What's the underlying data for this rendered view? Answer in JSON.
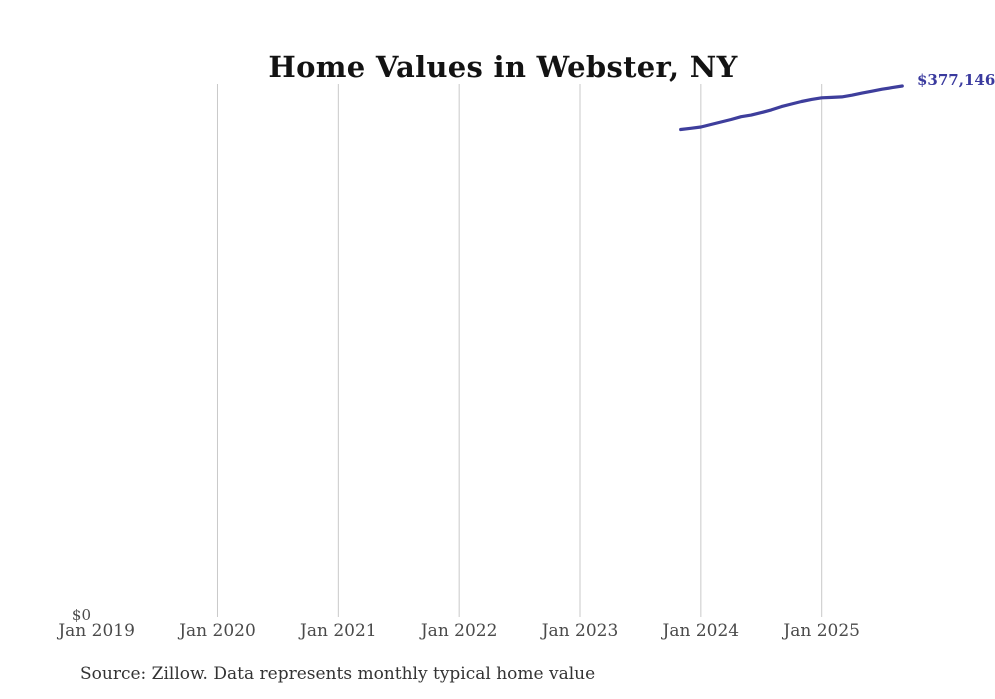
{
  "chart_data": {
    "type": "line",
    "title": "Home Values in Webster, NY",
    "x_tick_labels": [
      "Jan 2019",
      "Jan 2020",
      "Jan 2021",
      "Jan 2022",
      "Jan 2023",
      "Jan 2024",
      "Jan 2025"
    ],
    "y_zero_label": "$0",
    "end_value_label": "$377,146",
    "source_note": "Source: Zillow. Data represents monthly typical home value",
    "line_color": "#3e3e9c",
    "grid_color": "#c9c9c9",
    "label_color": "#3a3a9e",
    "grid": "vertical",
    "legend": "none",
    "ylim": [
      0,
      378000
    ],
    "x": [
      "2023-11",
      "2023-12",
      "2024-01",
      "2024-02",
      "2024-03",
      "2024-04",
      "2024-05",
      "2024-06",
      "2024-07",
      "2024-08",
      "2024-09",
      "2024-10",
      "2024-11",
      "2024-12",
      "2025-01",
      "2025-02",
      "2025-03",
      "2025-04",
      "2025-05",
      "2025-06",
      "2025-07",
      "2025-08",
      "2025-09"
    ],
    "values": [
      345800,
      346700,
      347600,
      349400,
      351200,
      353000,
      355000,
      356200,
      358000,
      359900,
      362300,
      364200,
      366000,
      367500,
      368600,
      368900,
      369300,
      370500,
      372000,
      373400,
      374800,
      376000,
      377146
    ]
  }
}
